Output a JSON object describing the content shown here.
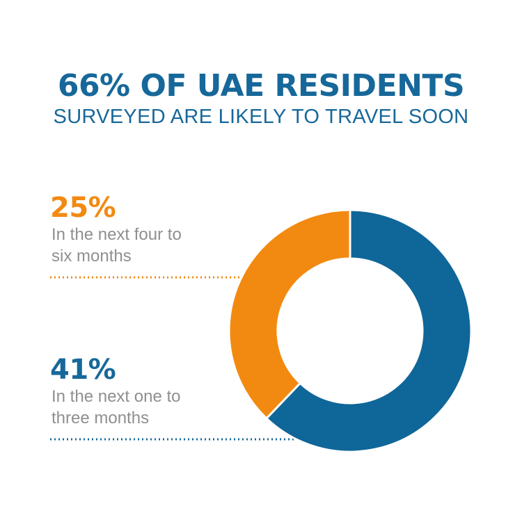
{
  "header": {
    "title": "66% OF UAE RESIDENTS",
    "subtitle": "SURVEYED ARE LIKELY TO TRAVEL SOON"
  },
  "colors": {
    "blue": "#17689a",
    "orange": "#f28a11",
    "text_gray": "#8f8f8f"
  },
  "chart_data": {
    "type": "pie",
    "style": "donut",
    "total_label": "66%",
    "slices": [
      {
        "label": "In the next one to three months",
        "value": 41,
        "value_label": "41%",
        "color": "#0f6699"
      },
      {
        "label": "In the next four to six months",
        "value": 25,
        "value_label": "25%",
        "color": "#f28a11"
      }
    ]
  },
  "annotations": {
    "orange": {
      "value": "25%",
      "line1": "In the next four to",
      "line2": "six months"
    },
    "blue": {
      "value": "41%",
      "line1": "In the next one to",
      "line2": "three months"
    }
  }
}
